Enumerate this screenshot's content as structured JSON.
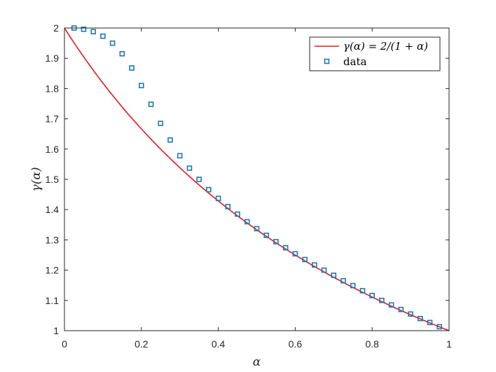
{
  "chart_data": {
    "type": "line",
    "title": "",
    "xlabel": "α",
    "ylabel": "γ(α)",
    "xlim": [
      0,
      1
    ],
    "ylim": [
      1,
      2
    ],
    "xticks": [
      0,
      0.2,
      0.4,
      0.6,
      0.8,
      1
    ],
    "xtick_labels": [
      "0",
      "0.2",
      "0.4",
      "0.6",
      "0.8",
      "1"
    ],
    "yticks": [
      1,
      1.1,
      1.2,
      1.3,
      1.4,
      1.5,
      1.6,
      1.7,
      1.8,
      1.9,
      2
    ],
    "ytick_labels": [
      "1",
      "1.1",
      "1.2",
      "1.3",
      "1.4",
      "1.5",
      "1.6",
      "1.7",
      "1.8",
      "1.9",
      "2"
    ],
    "grid": false,
    "legend_position": "top-right",
    "series": [
      {
        "name": "γ(α) = 2/(1 + α)",
        "kind": "line",
        "color": "#e41a1c",
        "formula": "2/(1+x)"
      },
      {
        "name": "data",
        "kind": "scatter",
        "marker": "square",
        "color": "#1f77b4",
        "x": [
          0.025,
          0.05,
          0.075,
          0.1,
          0.125,
          0.15,
          0.175,
          0.2,
          0.225,
          0.25,
          0.275,
          0.3,
          0.325,
          0.35,
          0.375,
          0.4,
          0.425,
          0.45,
          0.475,
          0.5,
          0.525,
          0.55,
          0.575,
          0.6,
          0.625,
          0.65,
          0.675,
          0.7,
          0.725,
          0.75,
          0.775,
          0.8,
          0.825,
          0.85,
          0.875,
          0.9,
          0.925,
          0.95,
          0.975
        ],
        "y": [
          2.0,
          1.996,
          1.988,
          1.973,
          1.95,
          1.915,
          1.868,
          1.81,
          1.748,
          1.685,
          1.63,
          1.578,
          1.537,
          1.5,
          1.466,
          1.437,
          1.41,
          1.385,
          1.36,
          1.337,
          1.315,
          1.294,
          1.274,
          1.254,
          1.235,
          1.217,
          1.2,
          1.183,
          1.165,
          1.149,
          1.132,
          1.116,
          1.1,
          1.085,
          1.07,
          1.055,
          1.04,
          1.027,
          1.013
        ]
      }
    ]
  }
}
